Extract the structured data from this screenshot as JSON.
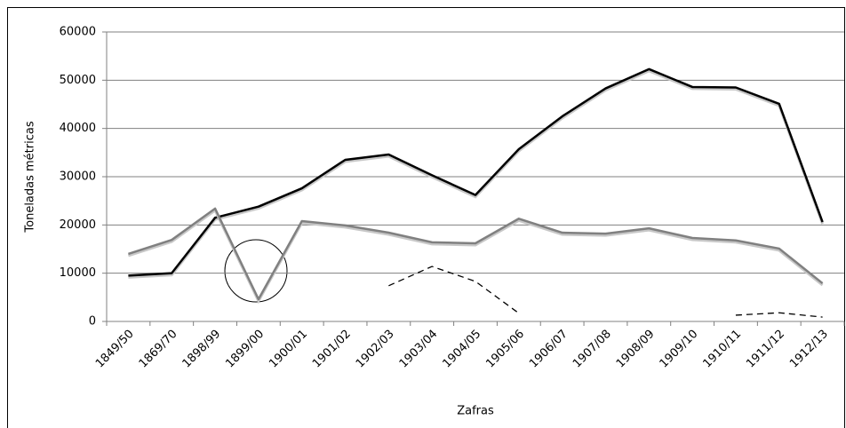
{
  "chart_data": {
    "type": "line",
    "x_label": "Zafras",
    "y_label": "Toneladas métricas",
    "categories": [
      "1849/50",
      "1869/70",
      "1898/99",
      "1899/00",
      "1900/01",
      "1901/02",
      "1902/03",
      "1903/04",
      "1904/05",
      "1905/06",
      "1906/07",
      "1907/08",
      "1908/09",
      "1909/10",
      "1910/11",
      "1911/12",
      "1912/13"
    ],
    "series": [
      {
        "color": "#000000",
        "dashed": false,
        "values": [
          9500,
          10000,
          21500,
          23800,
          27600,
          33500,
          34600,
          30300,
          26200,
          35700,
          42500,
          48300,
          52300,
          48600,
          48500,
          45100,
          20600
        ]
      },
      {
        "color": "#808080",
        "dashed": false,
        "values": [
          14000,
          16900,
          23400,
          4600,
          20800,
          19900,
          18400,
          16400,
          16200,
          21300,
          18400,
          18200,
          19300,
          17300,
          16800,
          15100,
          7900
        ]
      },
      {
        "color": "#000000",
        "dashed": true,
        "values": [
          null,
          null,
          null,
          null,
          null,
          null,
          7400,
          11400,
          8300,
          1700,
          null,
          null,
          null,
          null,
          1300,
          1800,
          900
        ]
      }
    ],
    "ylim": [
      0,
      60000
    ],
    "yticks": [
      0,
      10000,
      20000,
      30000,
      40000,
      50000,
      60000
    ],
    "grid": true
  }
}
